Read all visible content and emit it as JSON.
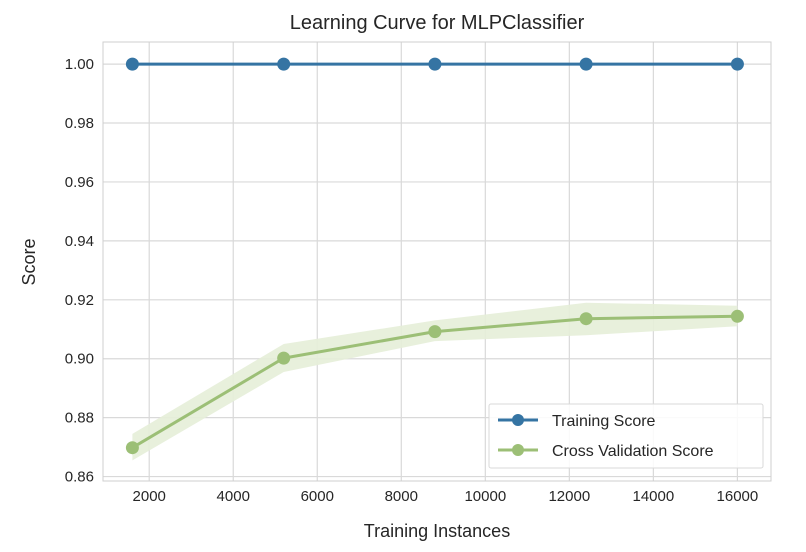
{
  "chart_data": {
    "type": "line",
    "title": "Learning Curve for MLPClassifier",
    "xlabel": "Training Instances",
    "ylabel": "Score",
    "xlim": [
      900,
      16800
    ],
    "ylim": [
      0.8585,
      1.0075
    ],
    "xticks": [
      2000,
      4000,
      6000,
      8000,
      10000,
      12000,
      14000,
      16000
    ],
    "yticks": [
      0.86,
      0.88,
      0.9,
      0.92,
      0.94,
      0.96,
      0.98,
      1.0
    ],
    "xtick_labels": [
      "2000",
      "4000",
      "6000",
      "8000",
      "10000",
      "12000",
      "14000",
      "16000"
    ],
    "ytick_labels": [
      "0.86",
      "0.88",
      "0.90",
      "0.92",
      "0.94",
      "0.96",
      "0.98",
      "1.00"
    ],
    "grid": true,
    "legend_position": "lower-right",
    "x": [
      1600,
      5200,
      8800,
      12400,
      16000
    ],
    "series": [
      {
        "name": "Training Score",
        "values": [
          1.0,
          1.0,
          1.0,
          1.0,
          1.0
        ],
        "band_low": [
          1.0,
          1.0,
          1.0,
          1.0,
          1.0
        ],
        "band_high": [
          1.0,
          1.0,
          1.0,
          1.0,
          1.0
        ],
        "color": "#3574a3"
      },
      {
        "name": "Cross Validation Score",
        "values": [
          0.8698,
          0.9002,
          0.9092,
          0.9136,
          0.9144
        ],
        "band_low": [
          0.8655,
          0.8955,
          0.906,
          0.908,
          0.911
        ],
        "band_high": [
          0.8745,
          0.905,
          0.913,
          0.919,
          0.918
        ],
        "color": "#9cbf76",
        "band_color": "#e5eed8"
      }
    ],
    "colors": {
      "grid": "#d9d9d9",
      "axes_edge": "#cfcfcf",
      "text": "#262626"
    }
  }
}
